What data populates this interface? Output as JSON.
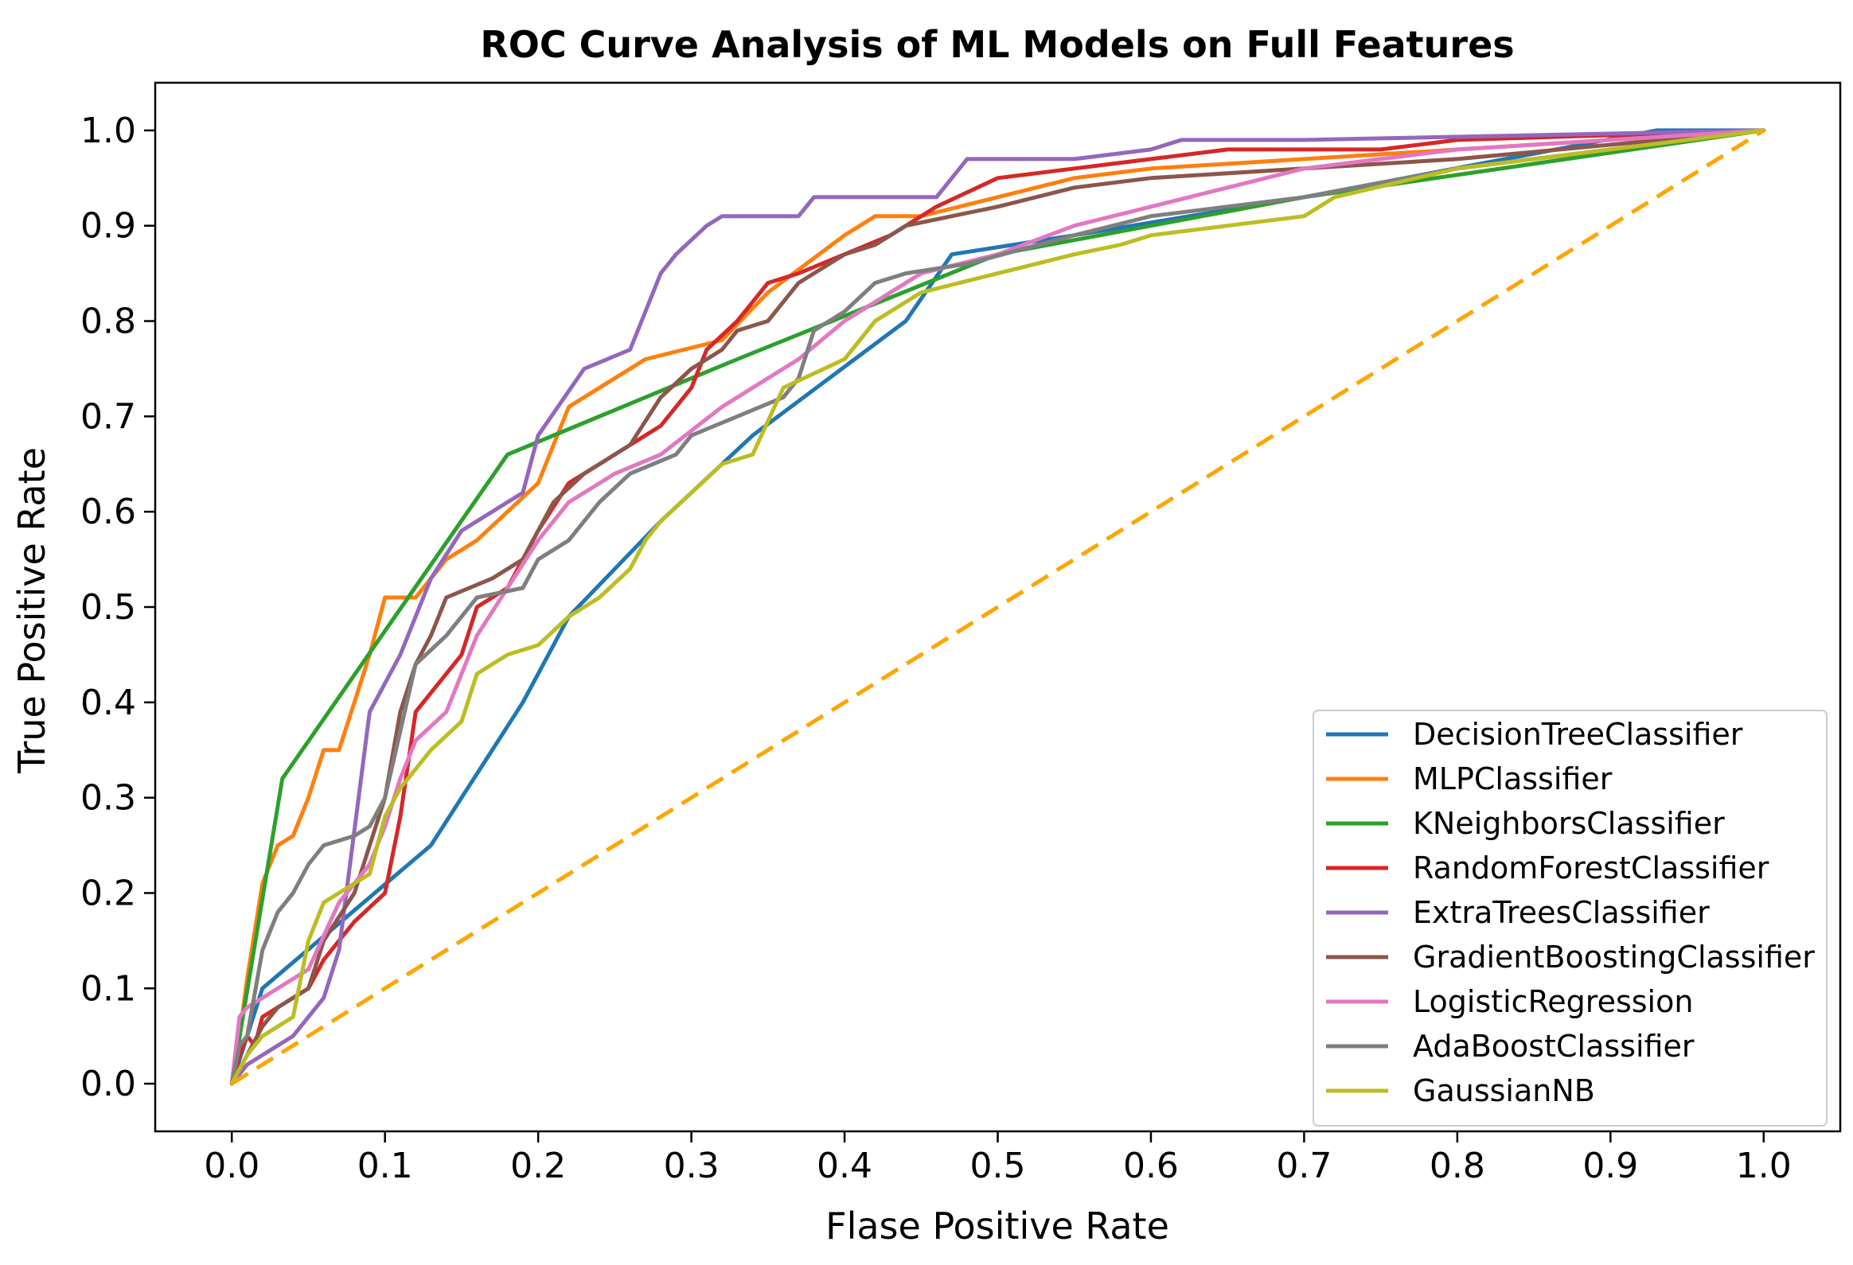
{
  "chart_data": {
    "type": "line",
    "title": "ROC Curve Analysis of ML Models on Full Features",
    "xlabel": "Flase Positive Rate",
    "ylabel": "True Positive Rate",
    "xlim": [
      -0.05,
      1.05
    ],
    "ylim": [
      -0.05,
      1.05
    ],
    "xticks": [
      "0.0",
      "0.1",
      "0.2",
      "0.3",
      "0.4",
      "0.5",
      "0.6",
      "0.7",
      "0.8",
      "0.9",
      "1.0"
    ],
    "yticks": [
      "0.0",
      "0.1",
      "0.2",
      "0.3",
      "0.4",
      "0.5",
      "0.6",
      "0.7",
      "0.8",
      "0.9",
      "1.0"
    ],
    "legend_position": "lower-right",
    "series": [
      {
        "name": "DecisionTreeClassifier",
        "color": "#1f77b4",
        "x": [
          0,
          0.02,
          0.13,
          0.19,
          0.22,
          0.28,
          0.34,
          0.44,
          0.47,
          0.55,
          0.7,
          0.93,
          1.0
        ],
        "y": [
          0,
          0.1,
          0.25,
          0.4,
          0.49,
          0.59,
          0.68,
          0.8,
          0.87,
          0.89,
          0.93,
          1.0,
          1.0
        ]
      },
      {
        "name": "MLPClassifier",
        "color": "#ff7f0e",
        "x": [
          0,
          0.005,
          0.01,
          0.015,
          0.02,
          0.03,
          0.04,
          0.05,
          0.06,
          0.07,
          0.08,
          0.09,
          0.1,
          0.12,
          0.14,
          0.16,
          0.18,
          0.2,
          0.22,
          0.24,
          0.27,
          0.32,
          0.35,
          0.4,
          0.42,
          0.45,
          0.5,
          0.55,
          0.6,
          0.7,
          0.8,
          1.0
        ],
        "y": [
          0,
          0.05,
          0.11,
          0.16,
          0.21,
          0.25,
          0.26,
          0.3,
          0.35,
          0.35,
          0.4,
          0.45,
          0.51,
          0.51,
          0.55,
          0.57,
          0.6,
          0.63,
          0.71,
          0.73,
          0.76,
          0.78,
          0.83,
          0.89,
          0.91,
          0.91,
          0.93,
          0.95,
          0.96,
          0.97,
          0.98,
          1.0
        ]
      },
      {
        "name": "KNeighborsClassifier",
        "color": "#2ca02c",
        "x": [
          0,
          0.033,
          0.18,
          0.33,
          0.5,
          0.7,
          1.0
        ],
        "y": [
          0,
          0.32,
          0.66,
          0.76,
          0.87,
          0.93,
          1.0
        ]
      },
      {
        "name": "RandomForestClassifier",
        "color": "#d62728",
        "x": [
          0,
          0.005,
          0.01,
          0.015,
          0.02,
          0.05,
          0.06,
          0.08,
          0.1,
          0.11,
          0.12,
          0.15,
          0.16,
          0.18,
          0.2,
          0.22,
          0.25,
          0.28,
          0.3,
          0.31,
          0.33,
          0.35,
          0.37,
          0.4,
          0.43,
          0.46,
          0.5,
          0.55,
          0.6,
          0.65,
          0.75,
          0.8,
          1.0
        ],
        "y": [
          0,
          0.03,
          0.05,
          0.04,
          0.07,
          0.1,
          0.13,
          0.17,
          0.2,
          0.28,
          0.39,
          0.45,
          0.5,
          0.52,
          0.58,
          0.63,
          0.66,
          0.69,
          0.73,
          0.77,
          0.8,
          0.84,
          0.85,
          0.87,
          0.89,
          0.92,
          0.95,
          0.96,
          0.97,
          0.98,
          0.98,
          0.99,
          1.0
        ]
      },
      {
        "name": "ExtraTreesClassifier",
        "color": "#9467bd",
        "x": [
          0,
          0.01,
          0.02,
          0.04,
          0.05,
          0.06,
          0.07,
          0.09,
          0.11,
          0.13,
          0.15,
          0.19,
          0.2,
          0.23,
          0.26,
          0.27,
          0.28,
          0.29,
          0.31,
          0.32,
          0.35,
          0.37,
          0.38,
          0.42,
          0.46,
          0.47,
          0.48,
          0.55,
          0.6,
          0.62,
          0.7,
          1.0
        ],
        "y": [
          0,
          0.02,
          0.03,
          0.05,
          0.07,
          0.09,
          0.14,
          0.39,
          0.45,
          0.53,
          0.58,
          0.62,
          0.68,
          0.75,
          0.77,
          0.81,
          0.85,
          0.87,
          0.9,
          0.91,
          0.91,
          0.91,
          0.93,
          0.93,
          0.93,
          0.95,
          0.97,
          0.97,
          0.98,
          0.99,
          0.99,
          1.0
        ]
      },
      {
        "name": "GradientBoostingClassifier",
        "color": "#8c564b",
        "x": [
          0,
          0.01,
          0.02,
          0.03,
          0.04,
          0.05,
          0.06,
          0.08,
          0.1,
          0.11,
          0.12,
          0.13,
          0.14,
          0.17,
          0.19,
          0.2,
          0.21,
          0.23,
          0.26,
          0.28,
          0.3,
          0.32,
          0.33,
          0.35,
          0.37,
          0.38,
          0.4,
          0.42,
          0.44,
          0.47,
          0.5,
          0.55,
          0.6,
          0.7,
          0.8,
          1.0
        ],
        "y": [
          0,
          0.03,
          0.06,
          0.08,
          0.09,
          0.1,
          0.15,
          0.2,
          0.3,
          0.39,
          0.44,
          0.47,
          0.51,
          0.53,
          0.55,
          0.58,
          0.61,
          0.64,
          0.67,
          0.72,
          0.75,
          0.77,
          0.79,
          0.8,
          0.84,
          0.85,
          0.87,
          0.88,
          0.9,
          0.91,
          0.92,
          0.94,
          0.95,
          0.96,
          0.97,
          1.0
        ]
      },
      {
        "name": "LogisticRegression",
        "color": "#e377c2",
        "x": [
          0,
          0.005,
          0.01,
          0.03,
          0.05,
          0.07,
          0.09,
          0.1,
          0.11,
          0.12,
          0.14,
          0.16,
          0.18,
          0.2,
          0.22,
          0.25,
          0.28,
          0.32,
          0.35,
          0.37,
          0.4,
          0.45,
          0.5,
          0.55,
          0.6,
          0.65,
          0.7,
          0.75,
          0.8,
          1.0
        ],
        "y": [
          0,
          0.07,
          0.08,
          0.1,
          0.12,
          0.19,
          0.23,
          0.27,
          0.32,
          0.36,
          0.39,
          0.47,
          0.52,
          0.57,
          0.61,
          0.64,
          0.66,
          0.71,
          0.74,
          0.76,
          0.8,
          0.85,
          0.87,
          0.9,
          0.92,
          0.94,
          0.96,
          0.97,
          0.98,
          1.0
        ]
      },
      {
        "name": "AdaBoostClassifier",
        "color": "#7f7f7f",
        "x": [
          0,
          0.005,
          0.01,
          0.02,
          0.03,
          0.04,
          0.05,
          0.06,
          0.08,
          0.09,
          0.1,
          0.12,
          0.14,
          0.16,
          0.19,
          0.2,
          0.22,
          0.24,
          0.26,
          0.29,
          0.3,
          0.33,
          0.36,
          0.37,
          0.38,
          0.4,
          0.42,
          0.44,
          0.48,
          0.55,
          0.6,
          0.7,
          0.8,
          1.0
        ],
        "y": [
          0,
          0.04,
          0.05,
          0.14,
          0.18,
          0.2,
          0.23,
          0.25,
          0.26,
          0.27,
          0.3,
          0.44,
          0.47,
          0.51,
          0.52,
          0.55,
          0.57,
          0.61,
          0.64,
          0.66,
          0.68,
          0.7,
          0.72,
          0.74,
          0.79,
          0.81,
          0.84,
          0.85,
          0.86,
          0.89,
          0.91,
          0.93,
          0.96,
          1.0
        ]
      },
      {
        "name": "GaussianNB",
        "color": "#bcbd22",
        "x": [
          0,
          0.01,
          0.02,
          0.04,
          0.05,
          0.06,
          0.09,
          0.1,
          0.11,
          0.13,
          0.15,
          0.16,
          0.18,
          0.2,
          0.22,
          0.24,
          0.26,
          0.27,
          0.28,
          0.3,
          0.32,
          0.34,
          0.36,
          0.4,
          0.42,
          0.45,
          0.5,
          0.55,
          0.58,
          0.6,
          0.65,
          0.7,
          0.72,
          0.8,
          1.0
        ],
        "y": [
          0,
          0.03,
          0.05,
          0.07,
          0.15,
          0.19,
          0.22,
          0.28,
          0.31,
          0.35,
          0.38,
          0.43,
          0.45,
          0.46,
          0.49,
          0.51,
          0.54,
          0.57,
          0.59,
          0.62,
          0.65,
          0.66,
          0.73,
          0.76,
          0.8,
          0.83,
          0.85,
          0.87,
          0.88,
          0.89,
          0.9,
          0.91,
          0.93,
          0.96,
          1.0
        ]
      }
    ],
    "reference_line": {
      "name": "chance",
      "color": "#ffa500",
      "x": [
        0,
        1
      ],
      "y": [
        0,
        1
      ]
    }
  }
}
